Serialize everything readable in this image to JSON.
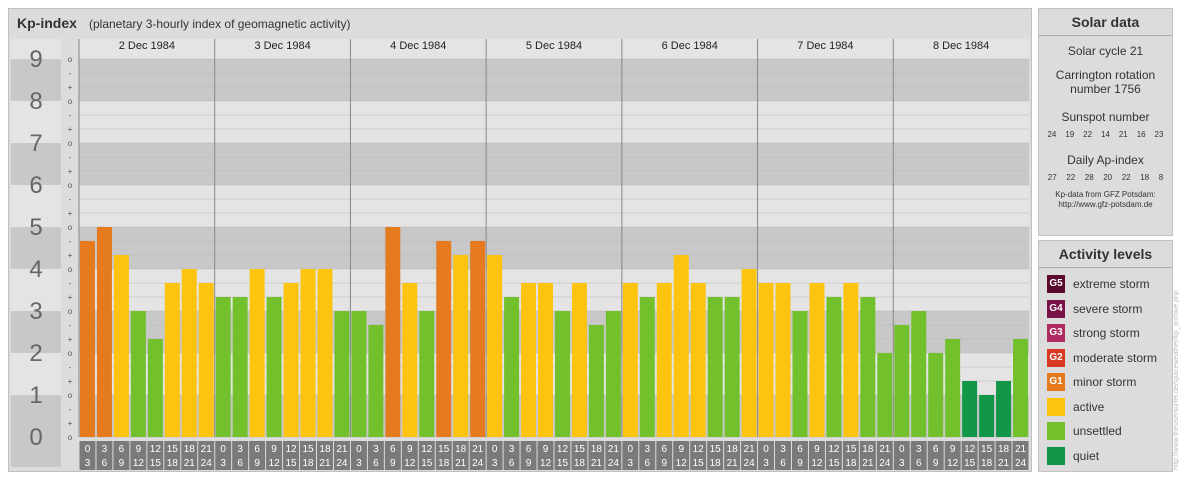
{
  "header": {
    "title": "Kp-index",
    "subtitle": "(planetary 3-hourly index of geomagnetic activity)"
  },
  "chart_data": {
    "type": "bar",
    "title": "Kp-index",
    "subtitle": "(planetary 3-hourly index of geomagnetic activity)",
    "ylim": [
      0,
      9
    ],
    "y_ticks": [
      "0",
      "1",
      "2",
      "3",
      "4",
      "5",
      "6",
      "7",
      "8",
      "9"
    ],
    "third_ticks": [
      "o",
      "+",
      "-"
    ],
    "days": [
      "2 Dec 1984",
      "3 Dec 1984",
      "4 Dec 1984",
      "5 Dec 1984",
      "6 Dec 1984",
      "7 Dec 1984",
      "8 Dec 1984"
    ],
    "hour_ranges": [
      [
        "0",
        "3"
      ],
      [
        "3",
        "6"
      ],
      [
        "6",
        "9"
      ],
      [
        "9",
        "12"
      ],
      [
        "12",
        "15"
      ],
      [
        "15",
        "18"
      ],
      [
        "18",
        "21"
      ],
      [
        "21",
        "24"
      ]
    ],
    "values": [
      4.667,
      5.0,
      4.333,
      3.0,
      2.333,
      3.667,
      4.0,
      3.667,
      3.333,
      3.333,
      4.0,
      3.333,
      3.667,
      4.0,
      4.0,
      3.0,
      3.0,
      2.667,
      5.0,
      3.667,
      3.0,
      4.667,
      4.333,
      4.667,
      4.333,
      3.333,
      3.667,
      3.667,
      3.0,
      3.667,
      2.667,
      3.0,
      3.667,
      3.333,
      3.667,
      4.333,
      3.667,
      3.333,
      3.333,
      4.0,
      3.667,
      3.667,
      3.0,
      3.667,
      3.333,
      3.667,
      3.333,
      2.0,
      2.667,
      3.0,
      2.0,
      2.333,
      1.333,
      1.0,
      1.333,
      2.333
    ],
    "grid": true
  },
  "solar": {
    "title": "Solar data",
    "cycle": "Solar cycle 21",
    "carrington_line1": "Carrington rotation",
    "carrington_line2": "number 1756",
    "sunspot_label": "Sunspot number",
    "sunspot_values": [
      "24",
      "19",
      "22",
      "14",
      "21",
      "16",
      "23"
    ],
    "ap_label": "Daily Ap-index",
    "ap_values": [
      "27",
      "22",
      "28",
      "20",
      "22",
      "18",
      "8"
    ],
    "credit_line1": "Kp-data from GFZ Potsdam:",
    "credit_line2": "http://www.gfz-potsdam.de"
  },
  "activity": {
    "title": "Activity levels",
    "levels": [
      {
        "code": "G5",
        "label": "extreme storm",
        "color": "#5a0a2e"
      },
      {
        "code": "G4",
        "label": "severe storm",
        "color": "#7a1048"
      },
      {
        "code": "G3",
        "label": "strong storm",
        "color": "#b02a62"
      },
      {
        "code": "G2",
        "label": "moderate storm",
        "color": "#d83a25"
      },
      {
        "code": "G1",
        "label": "minor storm",
        "color": "#e57a1f"
      },
      {
        "code": "",
        "label": "active",
        "color": "#fcc30f"
      },
      {
        "code": "",
        "label": "unsettled",
        "color": "#72c02c"
      },
      {
        "code": "",
        "label": "quiet",
        "color": "#129648"
      }
    ]
  },
  "colors": {
    "minor_storm": "#e57a1f",
    "active": "#fcc30f",
    "unsettled": "#72c02c",
    "quiet": "#129648",
    "band_dark": "#c8c8c8",
    "band_light": "#e4e4e4",
    "number_col": "#c0c0c0",
    "number_text": "#666666",
    "hour_box": "#7a7a7a"
  },
  "watermark": "http://www.theusersurfer.de/spaceweather/kp_archive.php"
}
